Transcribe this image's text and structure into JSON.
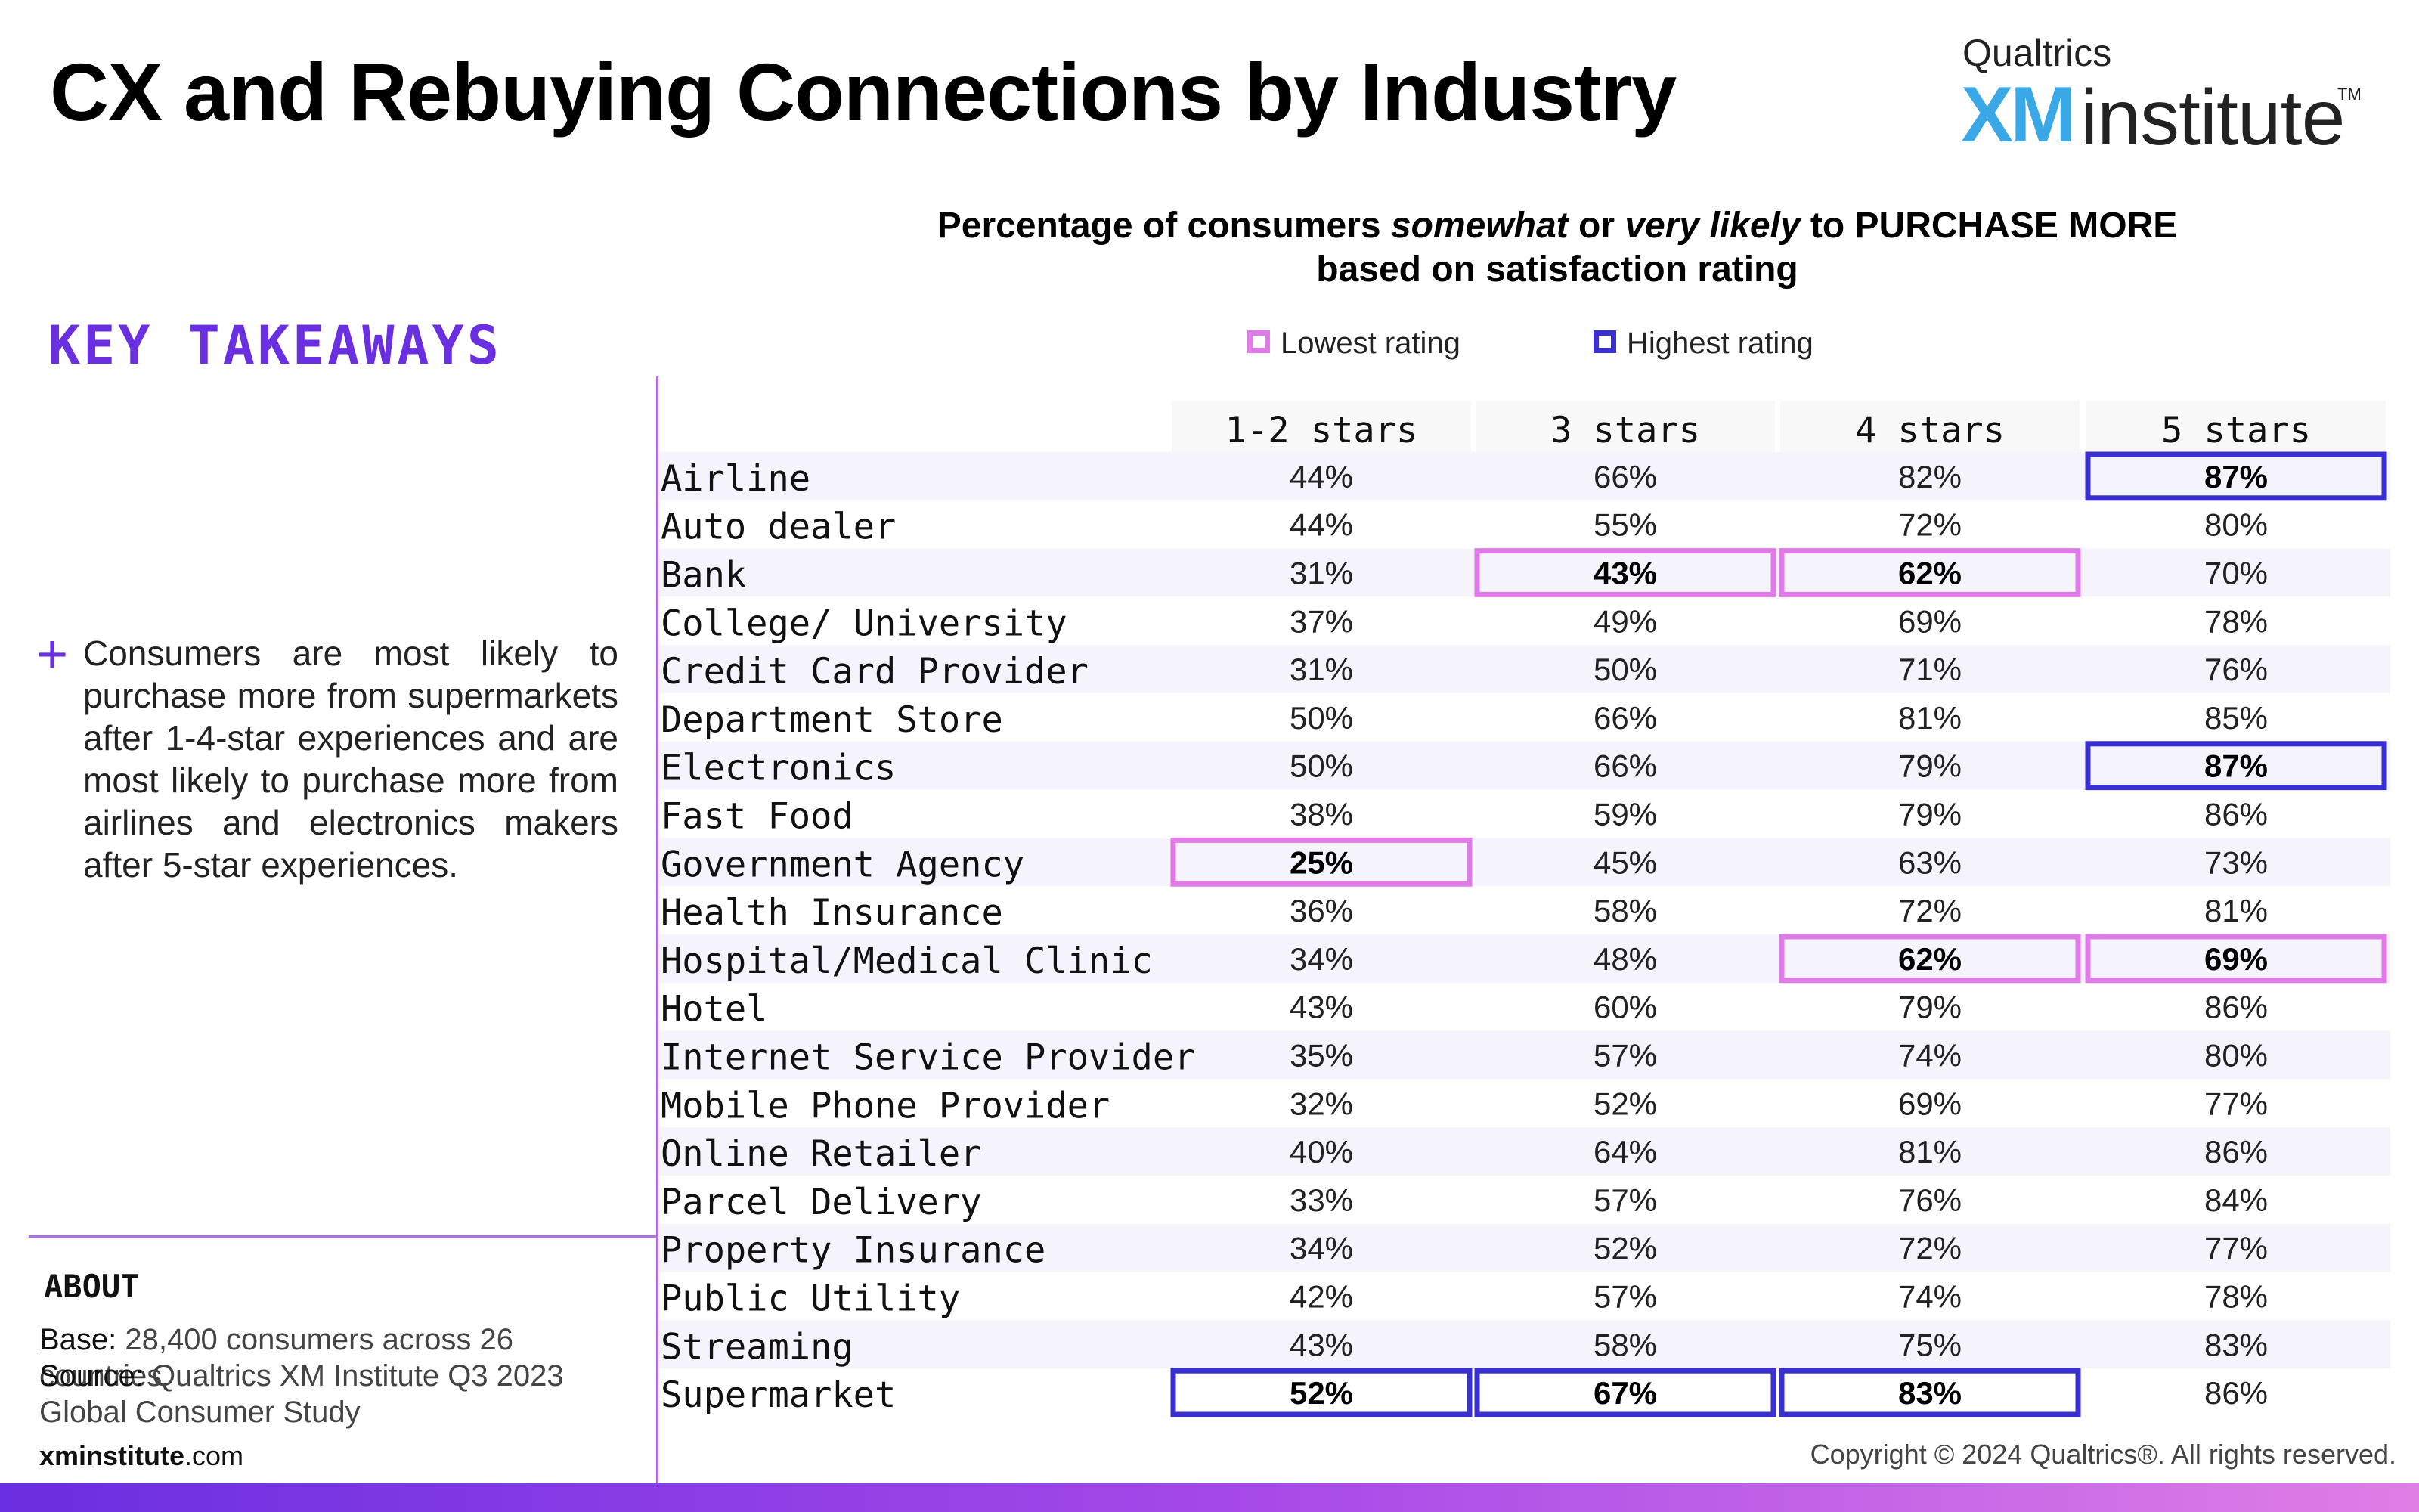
{
  "header": {
    "title": "CX and Rebuying Connections by Industry",
    "logo_brand": "Qualtrics",
    "logo_xm": "XM",
    "logo_institute": "institute",
    "logo_tm": "TM"
  },
  "key_takeaways": {
    "heading": "KEY TAKEAWAYS",
    "bullet_symbol": "+",
    "bullet": "Consumers are most likely to purchase more from supermarkets after 1-4-star experiences and are most likely to purchase more from airlines and electronics makers after 5-star experiences."
  },
  "about": {
    "heading": "ABOUT",
    "base_label": "Base:",
    "base_text": " 28,400 consumers across 26 countries",
    "source_label": "Source:",
    "source_text": " Qualtrics XM Institute Q3 2023 Global Consumer Study",
    "site_bold": "xminstitute",
    "site_rest": ".com"
  },
  "copyright": "Copyright © 2024 Qualtrics®. All rights reserved.",
  "legend": {
    "lowest": "Lowest rating",
    "highest": "Highest rating"
  },
  "colors": {
    "lowest": "#e07ae8",
    "highest": "#3a2fd0",
    "stripe": "#f5f3fb",
    "accent": "#6a2fe0",
    "divider": "#b06ee8"
  },
  "chart_data": {
    "type": "table",
    "title_parts": [
      {
        "text": "Percentage of consumers ",
        "italic": false
      },
      {
        "text": "somewhat",
        "italic": true
      },
      {
        "text": " or ",
        "italic": false
      },
      {
        "text": "very likely",
        "italic": true
      },
      {
        "text": " to PURCHASE MORE",
        "italic": false
      }
    ],
    "title_line2": "based on satisfaction rating",
    "columns": [
      "1-2 stars",
      "3 stars",
      "4 stars",
      "5 stars"
    ],
    "rows": [
      {
        "label": "Airline",
        "values": [
          44,
          66,
          82,
          87
        ]
      },
      {
        "label": "Auto dealer",
        "values": [
          44,
          55,
          72,
          80
        ]
      },
      {
        "label": "Bank",
        "values": [
          31,
          43,
          62,
          70
        ]
      },
      {
        "label": "College/ University",
        "values": [
          37,
          49,
          69,
          78
        ]
      },
      {
        "label": "Credit Card Provider",
        "values": [
          31,
          50,
          71,
          76
        ]
      },
      {
        "label": "Department Store",
        "values": [
          50,
          66,
          81,
          85
        ]
      },
      {
        "label": "Electronics",
        "values": [
          50,
          66,
          79,
          87
        ]
      },
      {
        "label": "Fast Food",
        "values": [
          38,
          59,
          79,
          86
        ]
      },
      {
        "label": "Government Agency",
        "values": [
          25,
          45,
          63,
          73
        ]
      },
      {
        "label": "Health Insurance",
        "values": [
          36,
          58,
          72,
          81
        ]
      },
      {
        "label": "Hospital/Medical Clinic",
        "values": [
          34,
          48,
          62,
          69
        ]
      },
      {
        "label": "Hotel",
        "values": [
          43,
          60,
          79,
          86
        ]
      },
      {
        "label": "Internet Service Provider",
        "values": [
          35,
          57,
          74,
          80
        ]
      },
      {
        "label": "Mobile Phone Provider",
        "values": [
          32,
          52,
          69,
          77
        ]
      },
      {
        "label": "Online Retailer",
        "values": [
          40,
          64,
          81,
          86
        ]
      },
      {
        "label": "Parcel Delivery",
        "values": [
          33,
          57,
          76,
          84
        ]
      },
      {
        "label": "Property Insurance",
        "values": [
          34,
          52,
          72,
          77
        ]
      },
      {
        "label": "Public Utility",
        "values": [
          42,
          57,
          74,
          78
        ]
      },
      {
        "label": "Streaming",
        "values": [
          43,
          58,
          75,
          83
        ]
      },
      {
        "label": "Supermarket",
        "values": [
          52,
          67,
          83,
          86
        ]
      }
    ],
    "unit": "%",
    "highlight_rule": "per column: lowest value outlined pink, highest value outlined blue, both bold"
  }
}
